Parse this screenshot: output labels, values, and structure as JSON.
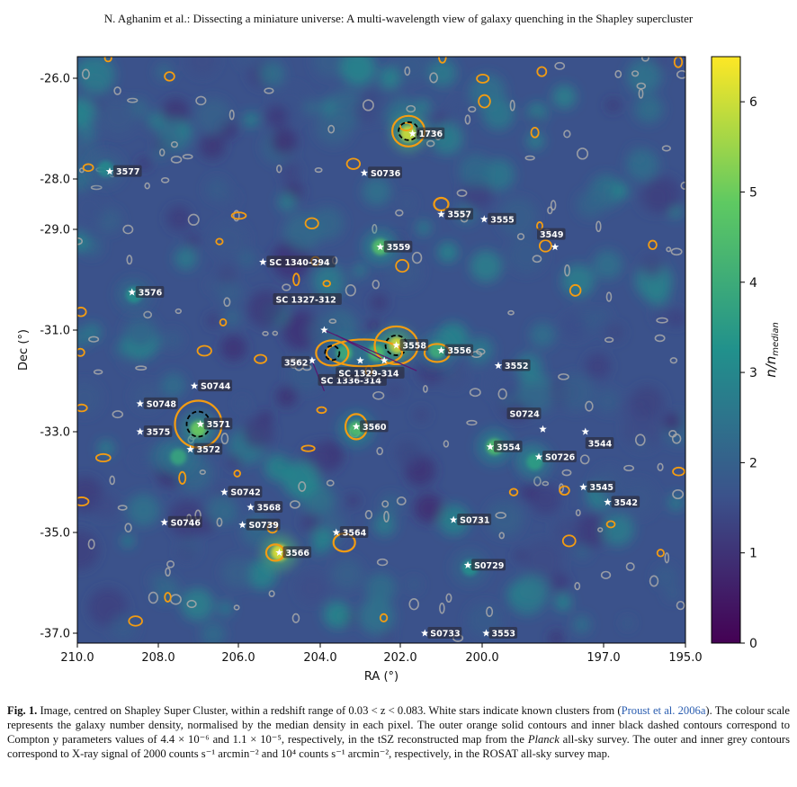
{
  "running_head": "N. Aghanim et al.: Dissecting a miniature universe: A multi-wavelength view of galaxy quenching in the Shapley supercluster",
  "chart_data": {
    "type": "heatmap",
    "title": "",
    "xlabel": "RA (°)",
    "ylabel": "Dec (°)",
    "colorbar_label": "n/n_median",
    "xlim": [
      210.0,
      195.0
    ],
    "ylim": [
      -37.0,
      -25.7
    ],
    "x_ticks": [
      {
        "v": 210.0,
        "label": "210.0"
      },
      {
        "v": 208.0,
        "label": "208.0"
      },
      {
        "v": 206.0,
        "label": "206.0"
      },
      {
        "v": 204.0,
        "label": "204.0"
      },
      {
        "v": 202.0,
        "label": "202.0"
      },
      {
        "v": 200.0,
        "label": "200.0"
      },
      {
        "v": 197.0,
        "label": "197.0"
      },
      {
        "v": 195.0,
        "label": "195.0"
      }
    ],
    "y_ticks": [
      {
        "v": -26.0,
        "label": "-26.0"
      },
      {
        "v": -28.0,
        "label": "-28.0"
      },
      {
        "v": -29.0,
        "label": "-29.0"
      },
      {
        "v": -31.0,
        "label": "-31.0"
      },
      {
        "v": -33.0,
        "label": "-33.0"
      },
      {
        "v": -35.0,
        "label": "-35.0"
      },
      {
        "v": -37.0,
        "label": "-37.0"
      }
    ],
    "colorbar": {
      "min": 0,
      "max": 6.5,
      "ticks": [
        0,
        1,
        2,
        3,
        4,
        5,
        6
      ]
    },
    "colormap": [
      "#440154",
      "#3b528b",
      "#21918c",
      "#5ec962",
      "#fde725"
    ],
    "contour_colors": {
      "tsz_outer": "#f39c12",
      "tsz_inner": "#000000",
      "xray": "#a9a9a9"
    },
    "clusters": [
      {
        "name": "1736",
        "ra": 201.7,
        "dec": -27.1
      },
      {
        "name": "3577",
        "ra": 209.2,
        "dec": -27.85
      },
      {
        "name": "S0736",
        "ra": 202.9,
        "dec": -27.88
      },
      {
        "name": "3557",
        "ra": 201.0,
        "dec": -28.7
      },
      {
        "name": "3555",
        "ra": 199.95,
        "dec": -28.8
      },
      {
        "name": "3549",
        "ra": 198.2,
        "dec": -29.35
      },
      {
        "name": "3559",
        "ra": 202.5,
        "dec": -29.35
      },
      {
        "name": "SC 1340-294",
        "ra": 205.4,
        "dec": -29.65
      },
      {
        "name": "3576",
        "ra": 208.65,
        "dec": -30.25
      },
      {
        "name": "SC 1327-312",
        "ra": 203.9,
        "dec": -31.0
      },
      {
        "name": "3562",
        "ra": 204.2,
        "dec": -31.6
      },
      {
        "name": "3558",
        "ra": 202.1,
        "dec": -31.3
      },
      {
        "name": "3556",
        "ra": 201.0,
        "dec": -31.4
      },
      {
        "name": "3552",
        "ra": 199.6,
        "dec": -31.7
      },
      {
        "name": "SC 1336-314",
        "ra": 203.0,
        "dec": -31.6
      },
      {
        "name": "SC 1329-314",
        "ra": 202.4,
        "dec": -31.6
      },
      {
        "name": "S0744",
        "ra": 207.1,
        "dec": -32.1
      },
      {
        "name": "S0748",
        "ra": 208.45,
        "dec": -32.45
      },
      {
        "name": "3575",
        "ra": 208.45,
        "dec": -33.0
      },
      {
        "name": "3571",
        "ra": 206.95,
        "dec": -32.85
      },
      {
        "name": "3572",
        "ra": 207.2,
        "dec": -33.35
      },
      {
        "name": "3560",
        "ra": 203.1,
        "dec": -32.9
      },
      {
        "name": "S0724",
        "ra": 198.5,
        "dec": -32.95
      },
      {
        "name": "3544",
        "ra": 197.45,
        "dec": -33.0
      },
      {
        "name": "3554",
        "ra": 199.8,
        "dec": -33.3
      },
      {
        "name": "S0726",
        "ra": 198.6,
        "dec": -33.5
      },
      {
        "name": "3545",
        "ra": 197.5,
        "dec": -34.1
      },
      {
        "name": "3542",
        "ra": 196.9,
        "dec": -34.4
      },
      {
        "name": "S0742",
        "ra": 206.35,
        "dec": -34.2
      },
      {
        "name": "3568",
        "ra": 205.7,
        "dec": -34.5
      },
      {
        "name": "S0731",
        "ra": 200.7,
        "dec": -34.75
      },
      {
        "name": "S0746",
        "ra": 207.85,
        "dec": -34.8
      },
      {
        "name": "S0739",
        "ra": 205.9,
        "dec": -34.85
      },
      {
        "name": "3564",
        "ra": 203.6,
        "dec": -35.0
      },
      {
        "name": "3566",
        "ra": 205.0,
        "dec": -35.4
      },
      {
        "name": "S0729",
        "ra": 200.35,
        "dec": -35.65
      },
      {
        "name": "S0733",
        "ra": 201.4,
        "dec": -37.0
      },
      {
        "name": "3553",
        "ra": 199.9,
        "dec": -37.0
      }
    ],
    "density_peaks": [
      {
        "ra": 201.8,
        "dec": -27.1,
        "v": 6.0
      },
      {
        "ra": 202.1,
        "dec": -31.3,
        "v": 6.3
      },
      {
        "ra": 202.6,
        "dec": -31.45,
        "v": 4.5
      },
      {
        "ra": 203.4,
        "dec": -31.45,
        "v": 4.0
      },
      {
        "ra": 205.0,
        "dec": -35.4,
        "v": 6.2
      },
      {
        "ra": 207.0,
        "dec": -32.95,
        "v": 5.0
      },
      {
        "ra": 202.5,
        "dec": -29.35,
        "v": 4.6
      },
      {
        "ra": 203.1,
        "dec": -32.95,
        "v": 4.5
      },
      {
        "ra": 199.7,
        "dec": -33.3,
        "v": 4.5
      },
      {
        "ra": 198.7,
        "dec": -33.6,
        "v": 3.6
      },
      {
        "ra": 209.3,
        "dec": -27.8,
        "v": 3.0
      },
      {
        "ra": 208.6,
        "dec": -30.3,
        "v": 3.2
      },
      {
        "ra": 201.1,
        "dec": -31.4,
        "v": 4.0
      },
      {
        "ra": 200.3,
        "dec": -35.7,
        "v": 3.2
      },
      {
        "ra": 207.5,
        "dec": -33.5,
        "v": 3.8
      }
    ]
  },
  "caption": {
    "label": "Fig. 1.",
    "part1": " Image, centred on Shapley Super Cluster, within a redshift range of 0.03 < z < 0.083. White stars indicate known clusters from (",
    "link": "Proust et al. 2006a",
    "part2": "). The colour scale represents the galaxy number density, normalised by the median density in each pixel. The outer orange solid contours and inner black dashed contours correspond to Compton y parameters values of 4.4 × 10⁻⁶ and 1.1 × 10⁻⁵, respectively, in the tSZ reconstructed map from the ",
    "planck": "Planck",
    "part3": " all-sky survey. The outer and inner grey contours correspond to X-ray signal of 2000 counts s⁻¹ arcmin⁻² and 10⁴ counts s⁻¹ arcmin⁻², respectively, in the ROSAT all-sky survey map."
  }
}
